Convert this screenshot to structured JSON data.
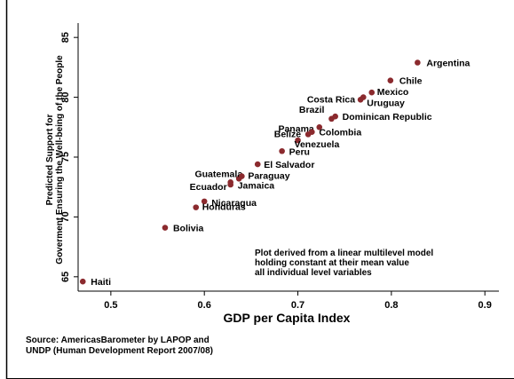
{
  "chart_data": {
    "type": "scatter",
    "xlabel": "GDP per Capita Index",
    "ylabel_lines": [
      "Predicted Support for",
      "Goverment Ensuring the Well-being of the People"
    ],
    "xlim": [
      0.465,
      0.915
    ],
    "ylim": [
      63.8,
      86.2
    ],
    "xticks": [
      0.5,
      0.6,
      0.7,
      0.8,
      0.9
    ],
    "xtick_labels": [
      "0.5",
      "0.6",
      "0.7",
      "0.8",
      "0.9"
    ],
    "yticks": [
      65,
      70,
      75,
      80,
      85
    ],
    "ytick_labels": [
      "65",
      "70",
      "75",
      "80",
      "85"
    ],
    "grid": false,
    "marker_color": "#8b2a2e",
    "points": [
      {
        "label": "Argentina",
        "x": 0.828,
        "y": 82.9
      },
      {
        "label": "Chile",
        "x": 0.799,
        "y": 81.4
      },
      {
        "label": "Mexico",
        "x": 0.779,
        "y": 80.4
      },
      {
        "label": "Costa Rica",
        "x": 0.767,
        "y": 79.8
      },
      {
        "label": "Uruguay",
        "x": 0.77,
        "y": 80.0
      },
      {
        "label": "Brazil",
        "x": 0.736,
        "y": 78.2
      },
      {
        "label": "Dominican Republic",
        "x": 0.74,
        "y": 78.4
      },
      {
        "label": "Panama",
        "x": 0.723,
        "y": 77.5
      },
      {
        "label": "Belize",
        "x": 0.711,
        "y": 76.9
      },
      {
        "label": "Colombia",
        "x": 0.715,
        "y": 77.1
      },
      {
        "label": "Venezuela",
        "x": 0.7,
        "y": 76.4
      },
      {
        "label": "Peru",
        "x": 0.683,
        "y": 75.5
      },
      {
        "label": "El Salvador",
        "x": 0.657,
        "y": 74.4
      },
      {
        "label": "Guatemala",
        "x": 0.637,
        "y": 73.2
      },
      {
        "label": "Paraguay",
        "x": 0.64,
        "y": 73.4
      },
      {
        "label": "Ecuador",
        "x": 0.628,
        "y": 72.7
      },
      {
        "label": "Jamaica",
        "x": 0.628,
        "y": 72.9
      },
      {
        "label": "Nicaragua",
        "x": 0.6,
        "y": 71.3
      },
      {
        "label": "Honduras",
        "x": 0.591,
        "y": 70.8
      },
      {
        "label": "Bolivia",
        "x": 0.558,
        "y": 69.1
      },
      {
        "label": "Haiti",
        "x": 0.47,
        "y": 64.6
      }
    ],
    "annotation_lines": [
      "Plot derived from a linear multilevel model",
      "holding constant at their mean value",
      "all individual level variables"
    ]
  },
  "source_lines": [
    "Source: AmericasBarometer by LAPOP and",
    "UNDP (Human Development Report 2007/08)"
  ],
  "colors": {
    "marker": "#8b2a2e",
    "text": "#000000",
    "frame": "#000000"
  }
}
